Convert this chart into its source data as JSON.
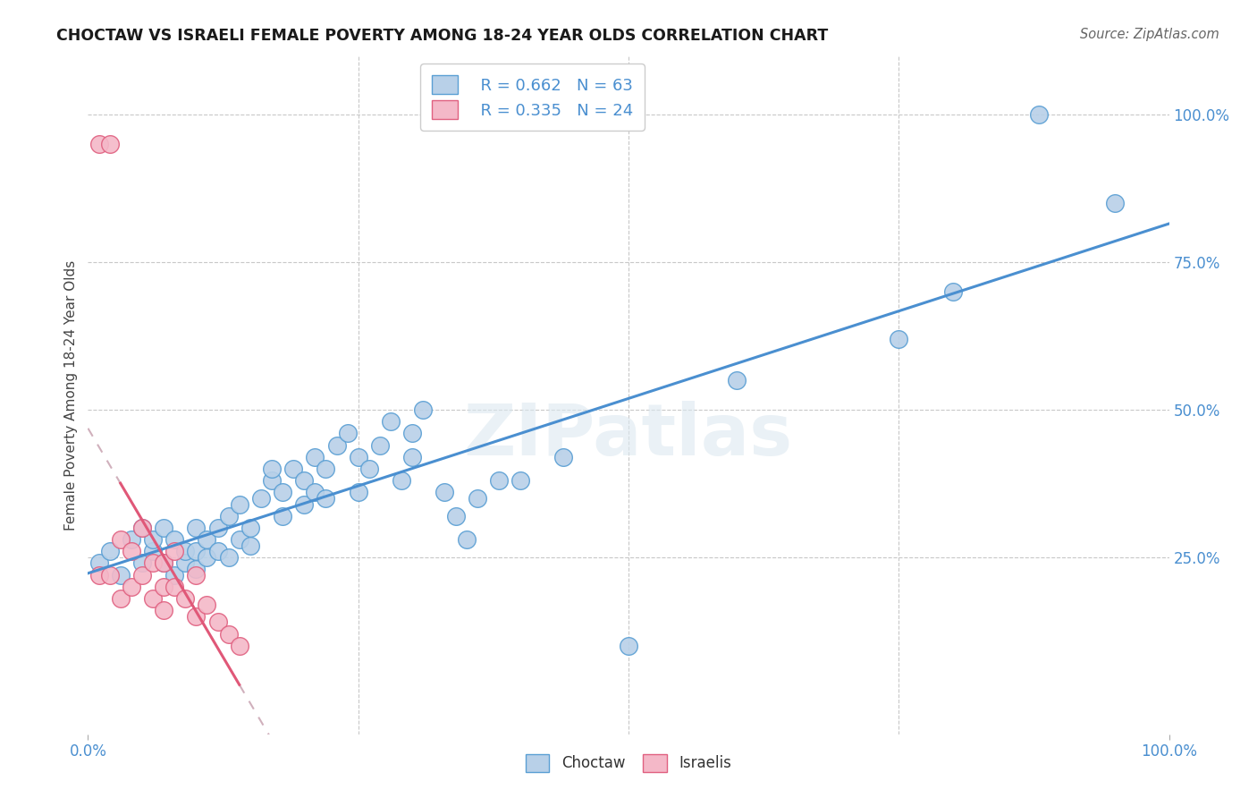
{
  "title": "CHOCTAW VS ISRAELI FEMALE POVERTY AMONG 18-24 YEAR OLDS CORRELATION CHART",
  "source": "Source: ZipAtlas.com",
  "ylabel": "Female Poverty Among 18-24 Year Olds",
  "xlim": [
    0.0,
    1.0
  ],
  "ylim": [
    -0.05,
    1.1
  ],
  "ytick_positions": [
    0.25,
    0.5,
    0.75,
    1.0
  ],
  "ytick_labels": [
    "25.0%",
    "50.0%",
    "75.0%",
    "100.0%"
  ],
  "grid_color": "#c8c8c8",
  "background_color": "#ffffff",
  "choctaw_color": "#b8d0e8",
  "israeli_color": "#f4b8c8",
  "choctaw_edge_color": "#5a9fd4",
  "israeli_edge_color": "#e06080",
  "choctaw_line_color": "#4a8fd0",
  "israeli_line_color": "#e05878",
  "israeli_dash_color": "#d0b0bc",
  "axis_label_color": "#4a8fd0",
  "r_choctaw": 0.662,
  "n_choctaw": 63,
  "r_israeli": 0.335,
  "n_israeli": 24,
  "watermark_color": "#dce8f0",
  "choctaw_x": [
    0.01,
    0.02,
    0.03,
    0.04,
    0.05,
    0.05,
    0.06,
    0.06,
    0.07,
    0.07,
    0.08,
    0.08,
    0.09,
    0.09,
    0.1,
    0.1,
    0.1,
    0.11,
    0.11,
    0.12,
    0.12,
    0.13,
    0.13,
    0.14,
    0.14,
    0.15,
    0.15,
    0.16,
    0.17,
    0.17,
    0.18,
    0.18,
    0.19,
    0.2,
    0.2,
    0.21,
    0.21,
    0.22,
    0.22,
    0.23,
    0.24,
    0.25,
    0.25,
    0.26,
    0.27,
    0.28,
    0.29,
    0.3,
    0.3,
    0.31,
    0.33,
    0.34,
    0.35,
    0.36,
    0.38,
    0.4,
    0.44,
    0.5,
    0.6,
    0.75,
    0.8,
    0.88,
    0.95
  ],
  "choctaw_y": [
    0.24,
    0.26,
    0.22,
    0.28,
    0.24,
    0.3,
    0.26,
    0.28,
    0.24,
    0.3,
    0.22,
    0.28,
    0.24,
    0.26,
    0.23,
    0.26,
    0.3,
    0.25,
    0.28,
    0.26,
    0.3,
    0.25,
    0.32,
    0.28,
    0.34,
    0.27,
    0.3,
    0.35,
    0.38,
    0.4,
    0.32,
    0.36,
    0.4,
    0.34,
    0.38,
    0.36,
    0.42,
    0.35,
    0.4,
    0.44,
    0.46,
    0.36,
    0.42,
    0.4,
    0.44,
    0.48,
    0.38,
    0.42,
    0.46,
    0.5,
    0.36,
    0.32,
    0.28,
    0.35,
    0.38,
    0.38,
    0.42,
    0.1,
    0.55,
    0.62,
    0.7,
    1.0,
    0.85
  ],
  "israeli_x": [
    0.01,
    0.01,
    0.02,
    0.02,
    0.03,
    0.03,
    0.04,
    0.04,
    0.05,
    0.05,
    0.06,
    0.06,
    0.07,
    0.07,
    0.07,
    0.08,
    0.08,
    0.09,
    0.1,
    0.1,
    0.11,
    0.12,
    0.13,
    0.14
  ],
  "israeli_y": [
    0.22,
    0.95,
    0.95,
    0.22,
    0.18,
    0.28,
    0.2,
    0.26,
    0.22,
    0.3,
    0.18,
    0.24,
    0.2,
    0.16,
    0.24,
    0.2,
    0.26,
    0.18,
    0.15,
    0.22,
    0.17,
    0.14,
    0.12,
    0.1
  ]
}
